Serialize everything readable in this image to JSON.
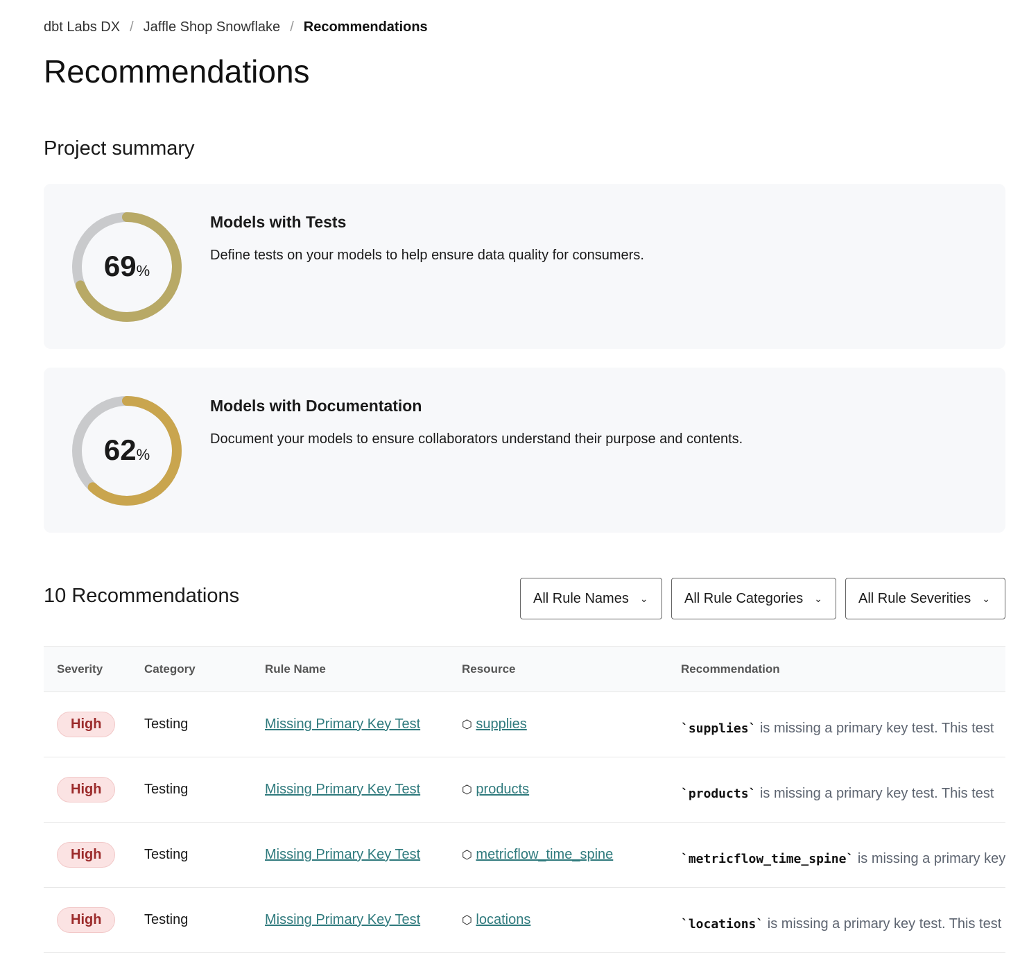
{
  "breadcrumb": [
    "dbt Labs DX",
    "Jaffle Shop Snowflake",
    "Recommendations"
  ],
  "page_title": "Recommendations",
  "summary_title": "Project summary",
  "cards": [
    {
      "title": "Models with Tests",
      "description": "Define tests on your models to help ensure data quality for consumers.",
      "percent": 69,
      "percent_label": "69",
      "unit": "%",
      "color": "#b8a966"
    },
    {
      "title": "Models with Documentation",
      "description": "Document your models to ensure collaborators understand their purpose and contents.",
      "percent": 62,
      "percent_label": "62",
      "unit": "%",
      "color": "#c9a54e"
    }
  ],
  "recommendations_count": "10 Recommendations",
  "filters": [
    "All Rule Names",
    "All Rule Categories",
    "All Rule Severities"
  ],
  "table": {
    "headers": [
      "Severity",
      "Category",
      "Rule Name",
      "Resource",
      "Recommendation"
    ],
    "rows": [
      {
        "severity": "High",
        "category": "Testing",
        "rule": "Missing Primary Key Test",
        "resource": "supplies",
        "code": "`supplies`",
        "text": "is missing a primary key test. This test"
      },
      {
        "severity": "High",
        "category": "Testing",
        "rule": "Missing Primary Key Test",
        "resource": "products",
        "code": "`products`",
        "text": "is missing a primary key test. This test"
      },
      {
        "severity": "High",
        "category": "Testing",
        "rule": "Missing Primary Key Test",
        "resource": "metricflow_time_spine",
        "code": "`metricflow_time_spine`",
        "text": "is missing a primary key"
      },
      {
        "severity": "High",
        "category": "Testing",
        "rule": "Missing Primary Key Test",
        "resource": "locations",
        "code": "`locations`",
        "text": "is missing a primary key test. This test"
      }
    ]
  }
}
